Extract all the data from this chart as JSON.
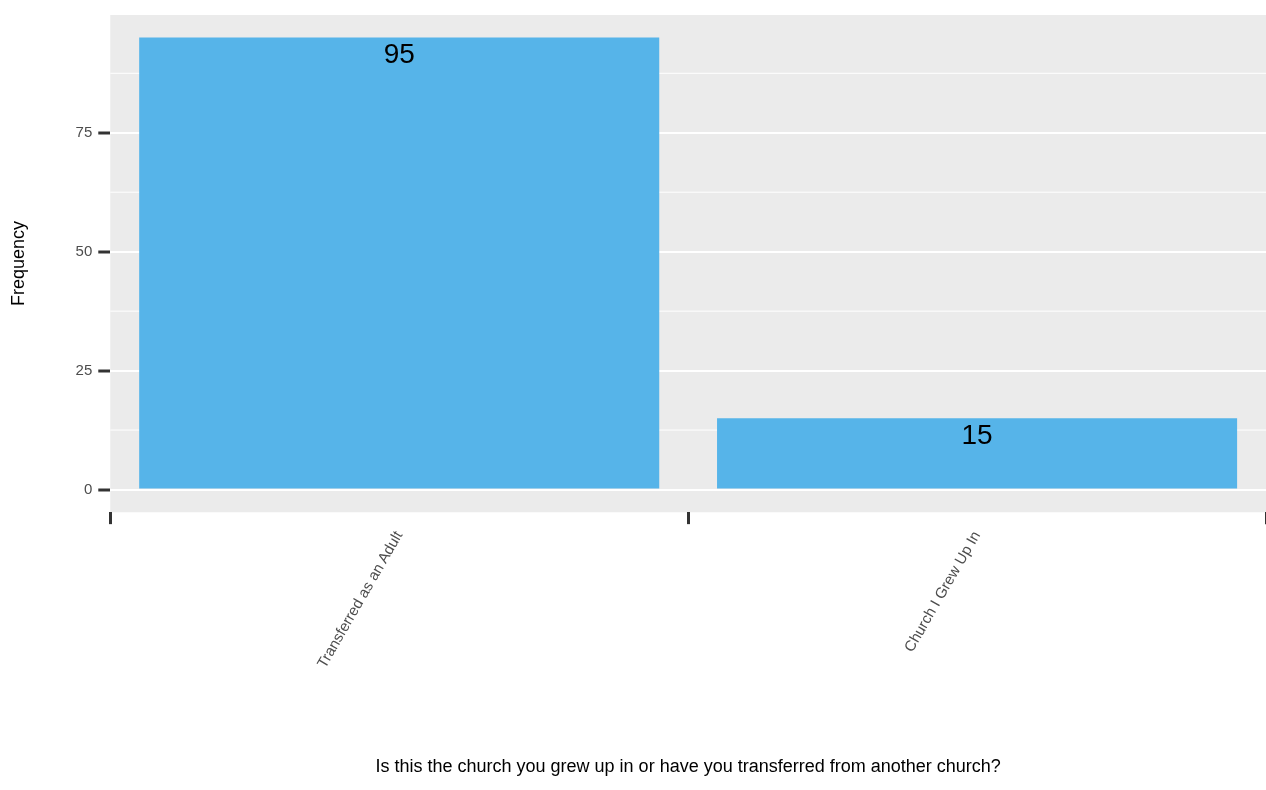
{
  "chart_data": {
    "type": "bar",
    "xlabel": "Is this the church you grew up in or have you transferred from another church?",
    "ylabel": "Frequency",
    "categories": [
      "Transferred as an Adult",
      "Church I Grew Up In"
    ],
    "values": [
      95,
      15
    ],
    "color": "#56b4e9",
    "ylim": [
      -4.75,
      99.75
    ],
    "yticks": [
      0,
      25,
      50,
      75
    ],
    "grid": true,
    "data_labels": true,
    "legend": false
  }
}
